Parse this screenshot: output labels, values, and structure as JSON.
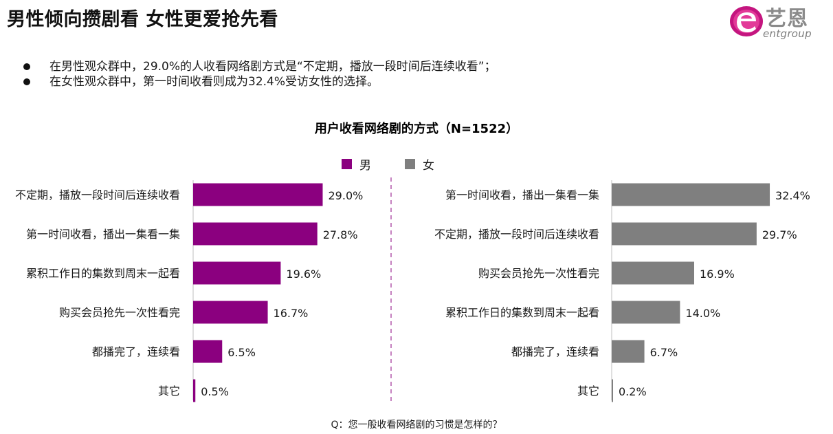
{
  "header": {
    "title": "男性倾向攒剧看  女性更爱抢先看",
    "logo_cn": "艺恩",
    "logo_en": "entgroup"
  },
  "bullets": [
    "在男性观众群中，29.0%的人收看网络剧方式是“不定期，播放一段时间后连续收看”；",
    "在女性观众群中，第一时间收看则成为32.4%受访女性的选择。"
  ],
  "footnote": "Q：您一般收看网络剧的习惯是怎样的？",
  "colors": {
    "male": "#8b007f",
    "female": "#7f7f7f"
  },
  "chart_data": {
    "type": "bar",
    "orientation": "horizontal",
    "title": "用户收看网络剧的方式（N=1522）",
    "legend_position": "top-center",
    "grid": false,
    "panels": [
      {
        "name": "男",
        "color": "#8b007f",
        "categories": [
          "不定期，播放一段时间后连续收看",
          "第一时间收看，播出一集看一集",
          "累积工作日的集数到周末一起看",
          "购买会员抢先一次性看完",
          "都播完了，连续看",
          "其它"
        ],
        "values": [
          29.0,
          27.8,
          19.6,
          16.7,
          6.5,
          0.5
        ],
        "labels": [
          "29.0%",
          "27.8%",
          "19.6%",
          "16.7%",
          "6.5%",
          "0.5%"
        ]
      },
      {
        "name": "女",
        "color": "#7f7f7f",
        "categories": [
          "第一时间收看，播出一集看一集",
          "不定期，播放一段时间后连续收看",
          "购买会员抢先一次性看完",
          "累积工作日的集数到周末一起看",
          "都播完了，连续看",
          "其它"
        ],
        "values": [
          32.4,
          29.7,
          16.9,
          14.0,
          6.7,
          0.2
        ],
        "labels": [
          "32.4%",
          "29.7%",
          "16.9%",
          "14.0%",
          "6.7%",
          "0.2%"
        ]
      }
    ]
  }
}
